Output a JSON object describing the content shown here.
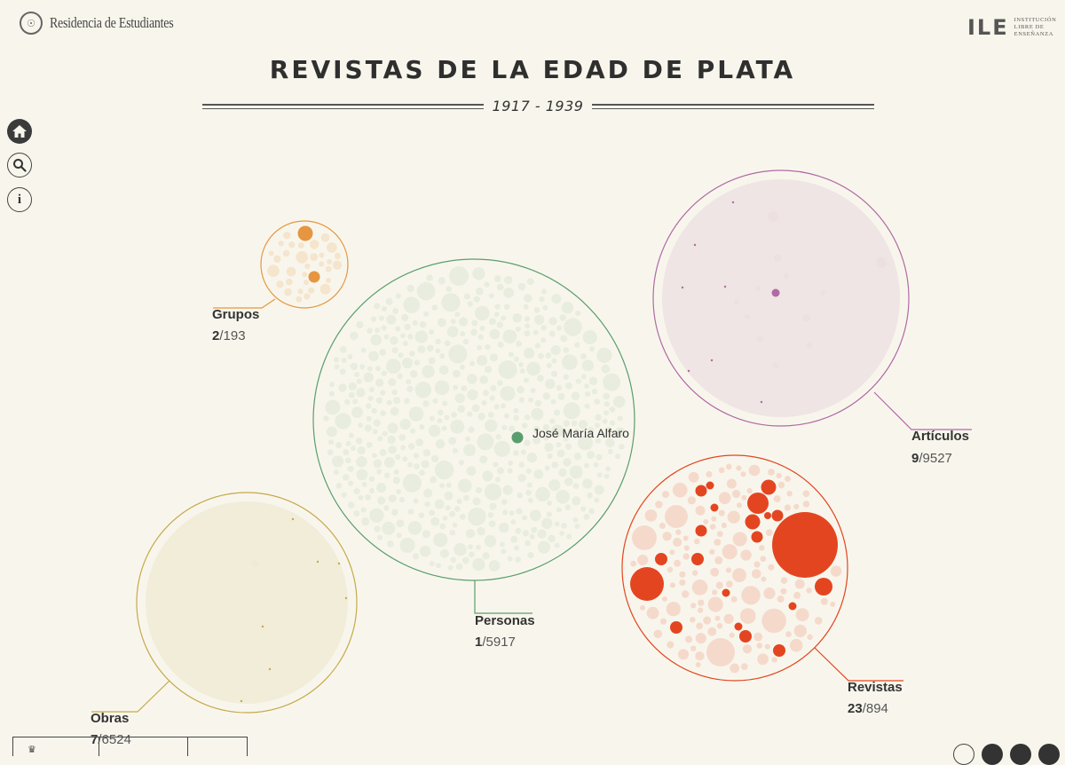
{
  "header": {
    "brand_left": "Residencia de Estudiantes",
    "brand_right_mark": "ILE",
    "brand_right_lines": [
      "INSTITUCIÓN",
      "LIBRE DE",
      "ENSEÑANZA"
    ],
    "title": "REVISTAS DE LA EDAD DE PLATA",
    "date_range": "1917 - 1939"
  },
  "sidebar": {
    "buttons": [
      {
        "name": "home",
        "icon": "home-icon"
      },
      {
        "name": "search",
        "icon": "search-icon"
      },
      {
        "name": "info",
        "icon": "info-icon",
        "glyph": "i"
      }
    ]
  },
  "colors": {
    "background": "#f8f6ec",
    "grupos": "#e69640",
    "personas": "#5a9e6e",
    "articulos": "#b06aa6",
    "revistas": "#e44521",
    "obras": "#c6a94a"
  },
  "categories": {
    "grupos": {
      "label": "Grupos",
      "selected": "2",
      "total": "/193"
    },
    "personas": {
      "label": "Personas",
      "selected": "1",
      "total": "/5917",
      "highlight_name": "José María Alfaro"
    },
    "articulos": {
      "label": "Artículos",
      "selected": "9",
      "total": "/9527"
    },
    "revistas": {
      "label": "Revistas",
      "selected": "23",
      "total": "/894"
    },
    "obras": {
      "label": "Obras",
      "selected": "7",
      "total": "/6524"
    }
  },
  "footer": {
    "crest_icon": "royal-crest-icon",
    "social_icons": [
      "document-icon",
      "print-icon",
      "twitter-icon",
      "facebook-icon"
    ]
  }
}
